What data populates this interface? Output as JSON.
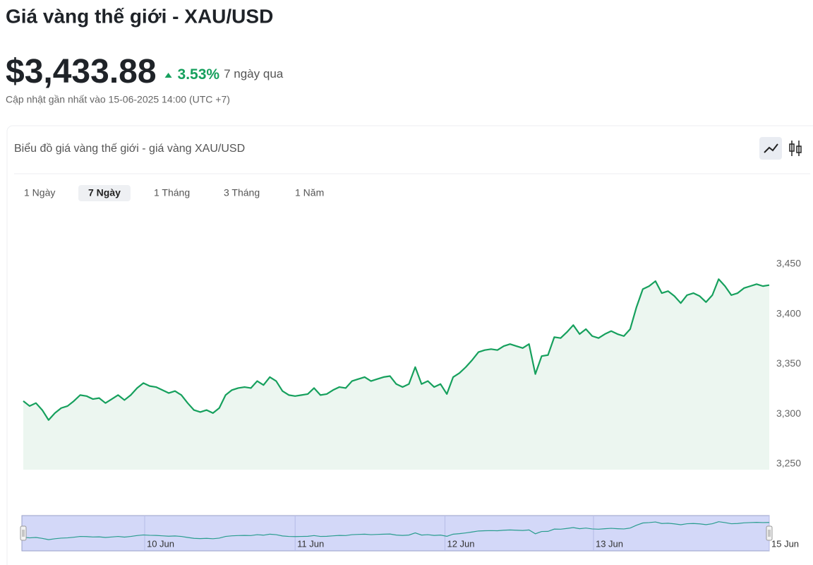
{
  "header": {
    "title": "Giá vàng thế giới - XAU/USD",
    "price": "$3,433.88",
    "change": "3.53%",
    "period": "7 ngày qua",
    "updated": "Cập nhật gần nhất vào 15-06-2025 14:00 (UTC +7)"
  },
  "card": {
    "title": "Biểu đồ giá vàng thế giới - giá vàng XAU/USD",
    "tabs": [
      "1 Ngày",
      "7 Ngày",
      "1 Tháng",
      "3 Tháng",
      "1 Năm"
    ],
    "selected_tab": 1
  },
  "chart_data": {
    "type": "line",
    "color": "#16a05d",
    "area_color": "#ecf6f0",
    "navigator_color": "#2a9d8f",
    "values": [
      3313,
      3308,
      3311,
      3304,
      3294,
      3301,
      3306,
      3308,
      3313,
      3319,
      3318,
      3315,
      3316,
      3311,
      3315,
      3319,
      3314,
      3319,
      3326,
      3331,
      3328,
      3327,
      3324,
      3321,
      3323,
      3319,
      3311,
      3304,
      3302,
      3304,
      3301,
      3306,
      3319,
      3324,
      3326,
      3327,
      3326,
      3333,
      3329,
      3337,
      3333,
      3323,
      3319,
      3318,
      3319,
      3320,
      3326,
      3319,
      3320,
      3324,
      3327,
      3326,
      3333,
      3335,
      3337,
      3333,
      3335,
      3337,
      3338,
      3330,
      3327,
      3330,
      3347,
      3330,
      3333,
      3327,
      3330,
      3320,
      3337,
      3341,
      3347,
      3354,
      3362,
      3364,
      3365,
      3364,
      3368,
      3370,
      3368,
      3366,
      3370,
      3340,
      3358,
      3359,
      3377,
      3376,
      3382,
      3389,
      3380,
      3385,
      3378,
      3376,
      3380,
      3383,
      3380,
      3378,
      3385,
      3407,
      3425,
      3428,
      3433,
      3421,
      3423,
      3418,
      3411,
      3419,
      3421,
      3418,
      3412,
      3419,
      3435,
      3428,
      3419,
      3421,
      3426,
      3428,
      3430,
      3428,
      3429
    ],
    "ylim": [
      3250,
      3450
    ],
    "yticks": [
      {
        "value": 3250,
        "label": "3,250"
      },
      {
        "value": 3300,
        "label": "3,300"
      },
      {
        "value": 3350,
        "label": "3,350"
      },
      {
        "value": 3400,
        "label": "3,400"
      },
      {
        "value": 3450,
        "label": "3,450"
      }
    ],
    "xlim": [
      0,
      118
    ],
    "xticks": [
      {
        "value": 19.2,
        "label": "10 Jun"
      },
      {
        "value": 43,
        "label": "11 Jun"
      },
      {
        "value": 66.7,
        "label": "12 Jun"
      },
      {
        "value": 90.2,
        "label": "13 Jun"
      },
      {
        "value": 118,
        "label": "15 Jun"
      }
    ]
  }
}
